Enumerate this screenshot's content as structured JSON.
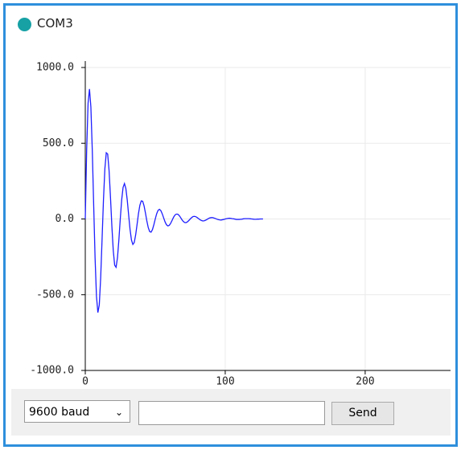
{
  "window": {
    "title": "COM3"
  },
  "chart_data": {
    "type": "line",
    "x": [
      0,
      1,
      2,
      3,
      4,
      5,
      6,
      7,
      8,
      9,
      10,
      11,
      12,
      13,
      14,
      15,
      16,
      17,
      18,
      19,
      20,
      21,
      22,
      23,
      24,
      25,
      26,
      27,
      28,
      29,
      30,
      31,
      32,
      33,
      34,
      35,
      36,
      37,
      38,
      39,
      40,
      41,
      42,
      43,
      44,
      45,
      46,
      47,
      48,
      49,
      50,
      51,
      52,
      53,
      54,
      55,
      56,
      57,
      58,
      59,
      60,
      61,
      62,
      63,
      64,
      65,
      66,
      67,
      68,
      69,
      70,
      71,
      72,
      73,
      74,
      75,
      76,
      77,
      78,
      79,
      80,
      81,
      82,
      83,
      84,
      85,
      86,
      87,
      88,
      89,
      90,
      91,
      92,
      93,
      94,
      95,
      96,
      97,
      98,
      99,
      100,
      101,
      102,
      103,
      104,
      105,
      106,
      107,
      108,
      109,
      110,
      111,
      112,
      113,
      114,
      115,
      116,
      117,
      118,
      119,
      120,
      121,
      122,
      123,
      124,
      125,
      126,
      127
    ],
    "series": [
      {
        "color": "#1f1fff",
        "values": [
          0,
          460,
          765,
          858,
          739,
          456,
          92,
          -257,
          -511,
          -618,
          -568,
          -388,
          -134,
          127,
          332,
          437,
          429,
          320,
          145,
          -47,
          -209,
          -305,
          -319,
          -256,
          -139,
          0,
          125,
          208,
          234,
          201,
          124,
          25,
          -70,
          -139,
          -168,
          -155,
          -105,
          -37,
          35,
          90,
          119,
          117,
          87,
          39,
          -13,
          -57,
          -83,
          -87,
          -70,
          -38,
          0,
          34,
          57,
          64,
          55,
          34,
          7,
          -19,
          -38,
          -46,
          -42,
          -29,
          -10,
          10,
          25,
          32,
          32,
          24,
          11,
          -4,
          -16,
          -23,
          -24,
          -19,
          -10,
          0,
          9,
          16,
          17,
          15,
          9,
          2,
          -5,
          -10,
          -13,
          -12,
          -8,
          -3,
          3,
          7,
          9,
          9,
          6,
          3,
          -1,
          -4,
          -6,
          -7,
          -5,
          -3,
          0,
          2,
          4,
          5,
          4,
          2,
          1,
          -1,
          -3,
          -3,
          -3,
          -2,
          -1,
          1,
          2,
          2,
          2,
          2,
          1,
          0,
          -1,
          -2,
          -2,
          -1,
          -1,
          0,
          0,
          0
        ]
      }
    ],
    "xlim": [
      0,
      261
    ],
    "xticks": [
      0,
      100,
      200
    ],
    "ylim": [
      -1000,
      1000
    ],
    "yticks": [
      {
        "value": -1000,
        "label": "-1000.0"
      },
      {
        "value": -500,
        "label": "-500.0"
      },
      {
        "value": 0,
        "label": "0.0"
      },
      {
        "value": 500,
        "label": "500.0"
      },
      {
        "value": 1000,
        "label": "1000.0"
      }
    ],
    "grid": true
  },
  "controls": {
    "baud": "9600 baud",
    "send": "Send"
  }
}
